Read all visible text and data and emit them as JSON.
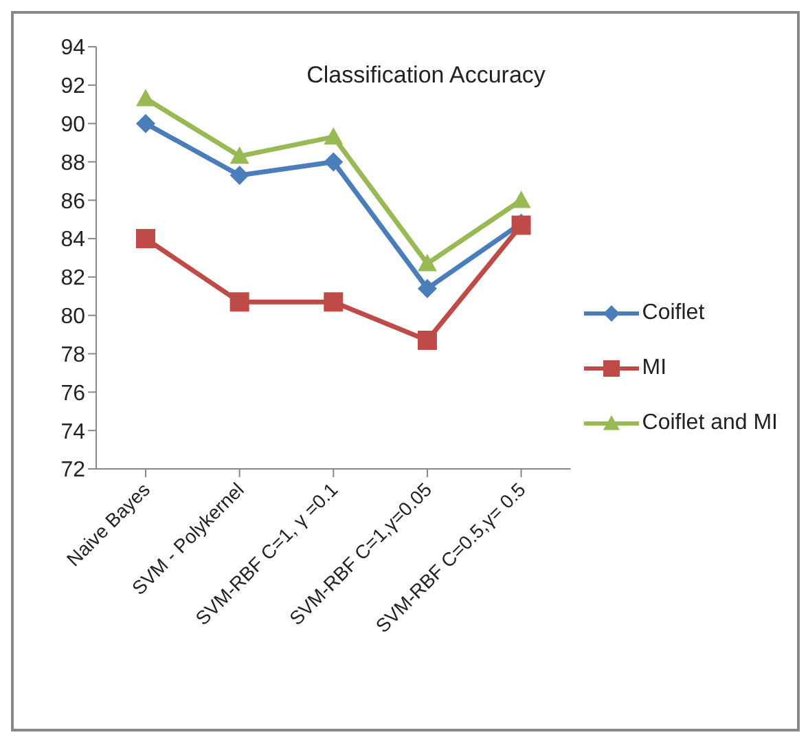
{
  "chart_data": {
    "type": "line",
    "title": "Classification Accuracy",
    "categories": [
      "Naive Bayes",
      "SVM - Polykernel",
      "SVM-RBF C=1, γ =0.1",
      "SVM-RBF C=1,γ=0.05",
      "SVM-RBF C=0.5,γ= 0.5"
    ],
    "series": [
      {
        "name": "Coiflet",
        "color": "#4a7ebb",
        "marker": "diamond",
        "values": [
          90,
          87.3,
          88,
          81.4,
          84.8
        ]
      },
      {
        "name": "MI",
        "color": "#be4b48",
        "marker": "square",
        "values": [
          84,
          80.7,
          80.7,
          78.7,
          84.7
        ]
      },
      {
        "name": "Coiflet and MI",
        "color": "#98b954",
        "marker": "triangle",
        "values": [
          91.3,
          88.3,
          89.3,
          82.7,
          86
        ]
      }
    ],
    "ylim": [
      72,
      94
    ],
    "yticks": [
      72,
      74,
      76,
      78,
      80,
      82,
      84,
      86,
      88,
      90,
      92,
      94
    ],
    "grid": false,
    "legend": "right"
  }
}
